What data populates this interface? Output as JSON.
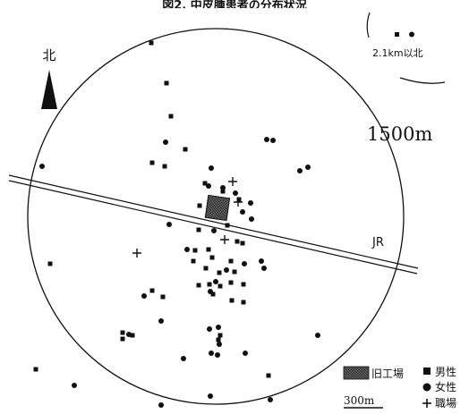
{
  "title": "図2. 中皮腫患者の分布状況",
  "north_label": "北",
  "radius_label": "1500m",
  "railway_label": "JR",
  "far_north_label": "2.1km以北",
  "scale_label": "300m",
  "legend": {
    "factory": "旧工場",
    "male": "男性",
    "female": "女性",
    "workplace": "職場"
  },
  "colors": {
    "ink": "#111111",
    "factory_fill": "#555555",
    "background": "#ffffff"
  }
}
